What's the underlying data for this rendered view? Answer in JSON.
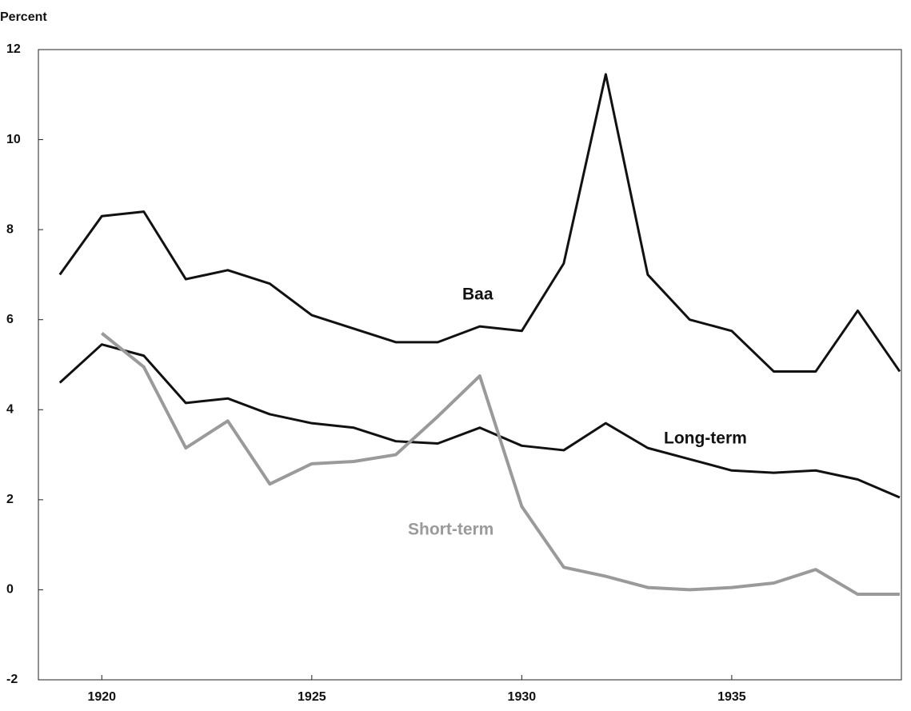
{
  "chart_data": {
    "type": "line",
    "y_label": "Percent",
    "x": [
      1919,
      1920,
      1921,
      1922,
      1923,
      1924,
      1925,
      1926,
      1927,
      1928,
      1929,
      1930,
      1931,
      1932,
      1933,
      1934,
      1935,
      1936,
      1937,
      1938,
      1939
    ],
    "series": [
      {
        "name": "Baa",
        "color": "#111111",
        "values": [
          7.0,
          8.3,
          8.4,
          6.9,
          7.1,
          6.8,
          6.1,
          5.8,
          5.5,
          5.5,
          5.85,
          5.75,
          7.25,
          11.45,
          7.0,
          6.0,
          5.75,
          4.85,
          4.85,
          6.2,
          4.85
        ]
      },
      {
        "name": "Long-term",
        "color": "#111111",
        "values": [
          4.6,
          5.45,
          5.2,
          4.15,
          4.25,
          3.9,
          3.7,
          3.6,
          3.3,
          3.25,
          3.6,
          3.2,
          3.1,
          3.7,
          3.15,
          2.9,
          2.65,
          2.6,
          2.65,
          2.45,
          2.05
        ]
      },
      {
        "name": "Short-term",
        "color": "#9a9a9a",
        "values": [
          null,
          5.7,
          4.95,
          3.15,
          3.75,
          2.35,
          2.8,
          2.85,
          3.0,
          3.85,
          4.75,
          1.85,
          0.5,
          0.3,
          0.05,
          0.0,
          0.05,
          0.15,
          0.45,
          -0.1,
          -0.1
        ]
      }
    ],
    "xlim": [
      1918.49,
      1939.04
    ],
    "xticks": [
      1920,
      1925,
      1930,
      1935
    ],
    "ylim": [
      -2,
      12
    ],
    "yticks": [
      -2,
      0,
      2,
      4,
      6,
      8,
      10,
      12
    ],
    "grid": false
  }
}
